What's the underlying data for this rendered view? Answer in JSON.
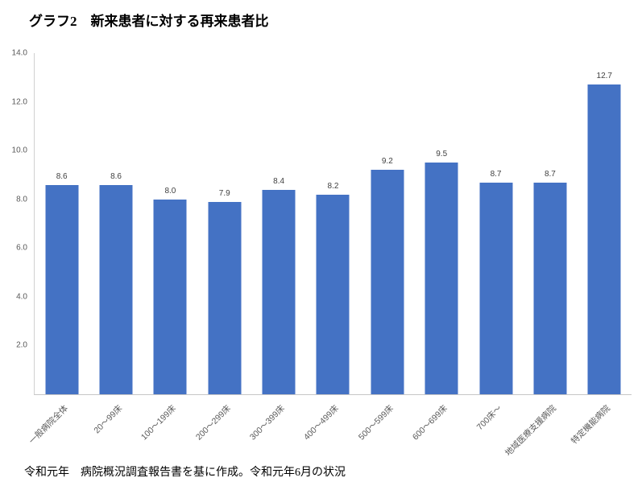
{
  "title": "グラフ2　新来患者に対する再来患者比",
  "footer": "令和元年　病院概況調査報告書を基に作成。令和元年6月の状況",
  "chart_data": {
    "type": "bar",
    "title": "グラフ2　新来患者に対する再来患者比",
    "categories": [
      "一般病院全体",
      "20～99床",
      "100～199床",
      "200～299床",
      "300～399床",
      "400～499床",
      "500～599床",
      "600～699床",
      "700床～",
      "地域医療支援病院",
      "特定機能病院"
    ],
    "values": [
      8.6,
      8.6,
      8.0,
      7.9,
      8.4,
      8.2,
      9.2,
      9.5,
      8.7,
      8.7,
      12.7
    ],
    "bar_color": "#4472C4",
    "xlabel": "",
    "ylabel": "",
    "ylim": [
      0,
      14
    ],
    "yticks": [
      2,
      4,
      6,
      8,
      10,
      12,
      14
    ],
    "ytick_format": "one-decimal",
    "grid": false,
    "legend": false,
    "value_labels": true,
    "x_label_rotation_deg": -45,
    "source_note": "令和元年　病院概況調査報告書を基に作成。令和元年6月の状況"
  }
}
